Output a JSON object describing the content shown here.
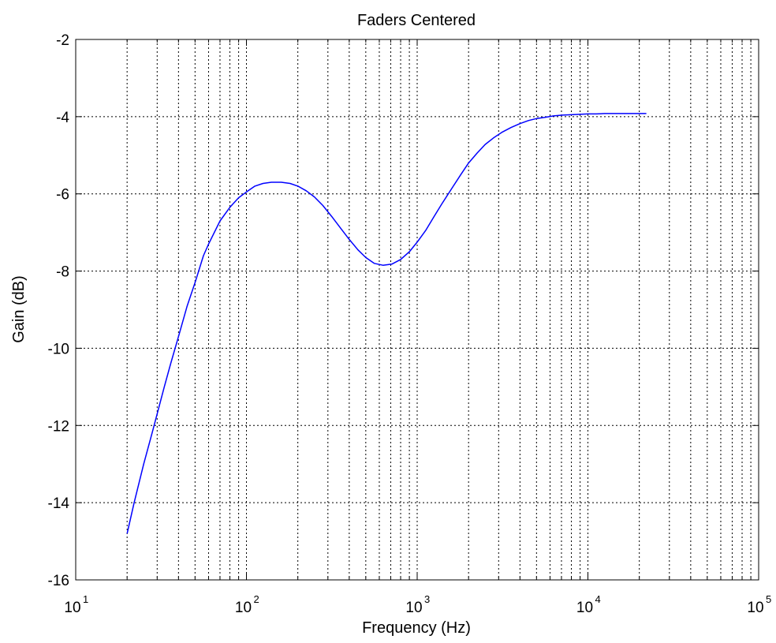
{
  "chart_data": {
    "type": "line",
    "title": "Faders Centered",
    "xlabel": "Frequency (Hz)",
    "ylabel": "Gain (dB)",
    "x_scale": "log",
    "xlim": [
      10,
      100000
    ],
    "ylim": [
      -16,
      -2
    ],
    "x_ticks": [
      {
        "base": "10",
        "exp": "1",
        "value": 10
      },
      {
        "base": "10",
        "exp": "2",
        "value": 100
      },
      {
        "base": "10",
        "exp": "3",
        "value": 1000
      },
      {
        "base": "10",
        "exp": "4",
        "value": 10000
      },
      {
        "base": "10",
        "exp": "5",
        "value": 100000
      }
    ],
    "y_ticks": [
      "-2",
      "-4",
      "-6",
      "-8",
      "-10",
      "-12",
      "-14",
      "-16"
    ],
    "grid": true,
    "line_color": "#0000ff",
    "series": [
      {
        "x": [
          20,
          22,
          25,
          28,
          30,
          33,
          36,
          40,
          45,
          50,
          56,
          60,
          70,
          80,
          90,
          100,
          112,
          125,
          140,
          160,
          180,
          200,
          224,
          250,
          280,
          315,
          355,
          400,
          450,
          500,
          560,
          630,
          710,
          800,
          900,
          1000,
          1120,
          1250,
          1400,
          1600,
          1800,
          2000,
          2240,
          2500,
          2800,
          3150,
          3550,
          4000,
          4500,
          5000,
          5600,
          6300,
          7100,
          8000,
          9000,
          10000,
          11200,
          12500,
          14000,
          16000,
          18000,
          20000,
          22000
        ],
        "y": [
          -14.8,
          -14.0,
          -13.0,
          -12.2,
          -11.7,
          -11.0,
          -10.4,
          -9.7,
          -8.9,
          -8.3,
          -7.6,
          -7.3,
          -6.7,
          -6.35,
          -6.1,
          -5.95,
          -5.8,
          -5.73,
          -5.7,
          -5.7,
          -5.73,
          -5.8,
          -5.92,
          -6.08,
          -6.3,
          -6.58,
          -6.88,
          -7.18,
          -7.45,
          -7.65,
          -7.8,
          -7.85,
          -7.82,
          -7.7,
          -7.5,
          -7.25,
          -6.95,
          -6.6,
          -6.25,
          -5.85,
          -5.5,
          -5.2,
          -4.95,
          -4.72,
          -4.55,
          -4.4,
          -4.28,
          -4.18,
          -4.1,
          -4.05,
          -4.02,
          -3.98,
          -3.96,
          -3.95,
          -3.94,
          -3.93,
          -3.93,
          -3.92,
          -3.92,
          -3.92,
          -3.92,
          -3.92,
          -3.92
        ]
      }
    ]
  }
}
